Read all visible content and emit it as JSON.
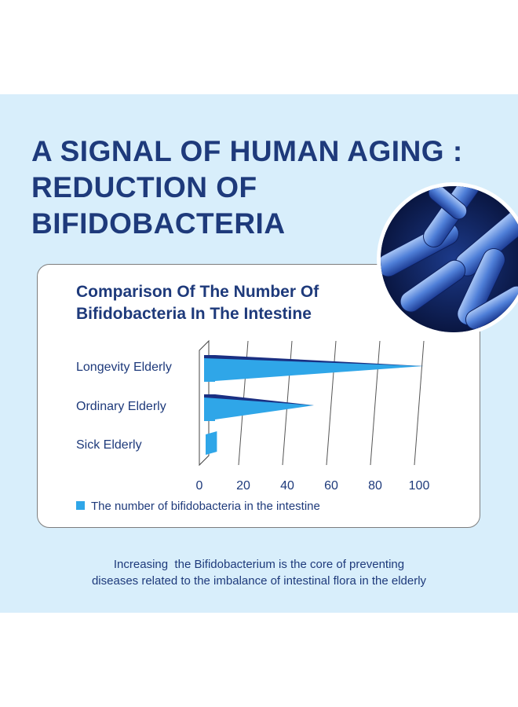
{
  "headline": {
    "line1": "A SIGNAL OF HUMAN AGING :",
    "line2": "REDUCTION OF",
    "line3": "BIFIDOBACTERIA"
  },
  "colors": {
    "background_band": "#d8eefb",
    "navy": "#1e3a7b",
    "bar_light": "#2fa6e8",
    "bar_dark": "#1a2f82"
  },
  "chart_data": {
    "type": "bar",
    "title": "Comparison Of The Number Of Bifidobacteria In The Intestine",
    "title_line1": "Comparison Of The Number Of",
    "title_line2": "Bifidobacteria In The Intestine",
    "orientation": "horizontal",
    "categories": [
      "Longevity Elderly",
      "Ordinary Elderly",
      "Sick Elderly"
    ],
    "series": [
      {
        "name": "The number of bifidobacteria in the intestine",
        "values": [
          100,
          50,
          3
        ]
      }
    ],
    "xticks": [
      "0",
      "20",
      "40",
      "60",
      "80",
      "100"
    ],
    "xlim": [
      0,
      100
    ],
    "grid": true,
    "legend_position": "bottom-left"
  },
  "footer": {
    "line1": "Increasing  the Bifidobacterium is the core of preventing",
    "line2": "diseases related to the imbalance of intestinal flora in the elderly"
  }
}
